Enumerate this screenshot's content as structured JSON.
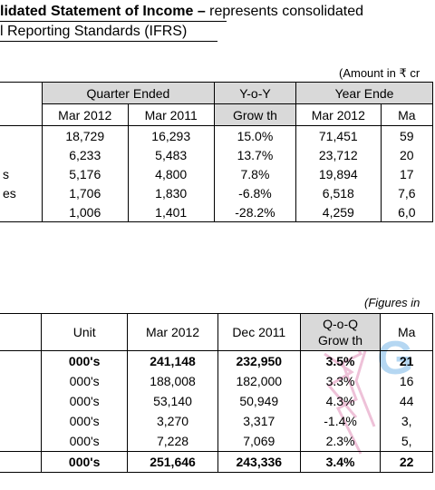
{
  "title": {
    "line1_bold": "lidated Statement of Income –",
    "line1_rest": " represents consolidated",
    "line2": "l Reporting Standards (IFRS)"
  },
  "table1": {
    "note": "(Amount in ₹ cr",
    "head1": [
      "Quarter Ended",
      "Y-o-Y",
      "Year Ende"
    ],
    "head2": [
      "Mar 2012",
      "Mar 2011",
      "Grow th",
      "Mar 2012",
      "Ma"
    ],
    "rows": [
      {
        "label": "",
        "c1": "18,729",
        "c2": "16,293",
        "c3": "15.0%",
        "c4": "71,451",
        "c5": "59"
      },
      {
        "label": "",
        "c1": "6,233",
        "c2": "5,483",
        "c3": "13.7%",
        "c4": "23,712",
        "c5": "20"
      },
      {
        "label": "s",
        "c1": "5,176",
        "c2": "4,800",
        "c3": "7.8%",
        "c4": "19,894",
        "c5": "17"
      },
      {
        "label": "es",
        "c1": "1,706",
        "c2": "1,830",
        "c3": "-6.8%",
        "c4": "6,518",
        "c5": "7,6"
      },
      {
        "label": "",
        "c1": "1,006",
        "c2": "1,401",
        "c3": "-28.2%",
        "c4": "4,259",
        "c5": "6,0"
      }
    ]
  },
  "table2": {
    "note": "(Figures in",
    "head": [
      "Unit",
      "Mar 2012",
      "Dec 2011",
      "Q-o-Q",
      "Grow th",
      "Ma"
    ],
    "rows": [
      {
        "unit": "000's",
        "c1": "241,148",
        "c2": "232,950",
        "c3": "3.5%",
        "c4": "21"
      },
      {
        "unit": "000's",
        "c1": "188,008",
        "c2": "182,000",
        "c3": "3.3%",
        "c4": "16"
      },
      {
        "unit": "000's",
        "c1": "53,140",
        "c2": "50,949",
        "c3": "4.3%",
        "c4": "44"
      },
      {
        "unit": "000's",
        "c1": "3,270",
        "c2": "3,317",
        "c3": "-1.4%",
        "c4": "3,"
      },
      {
        "unit": "000's",
        "c1": "7,228",
        "c2": "7,069",
        "c3": "2.3%",
        "c4": "5,"
      }
    ],
    "total": {
      "unit": "000's",
      "c1": "251,646",
      "c2": "243,336",
      "c3": "3.4%",
      "c4": "22"
    }
  },
  "colors": {
    "header_shade": "#d9d9d9",
    "watermark": "#e8a8c8"
  }
}
